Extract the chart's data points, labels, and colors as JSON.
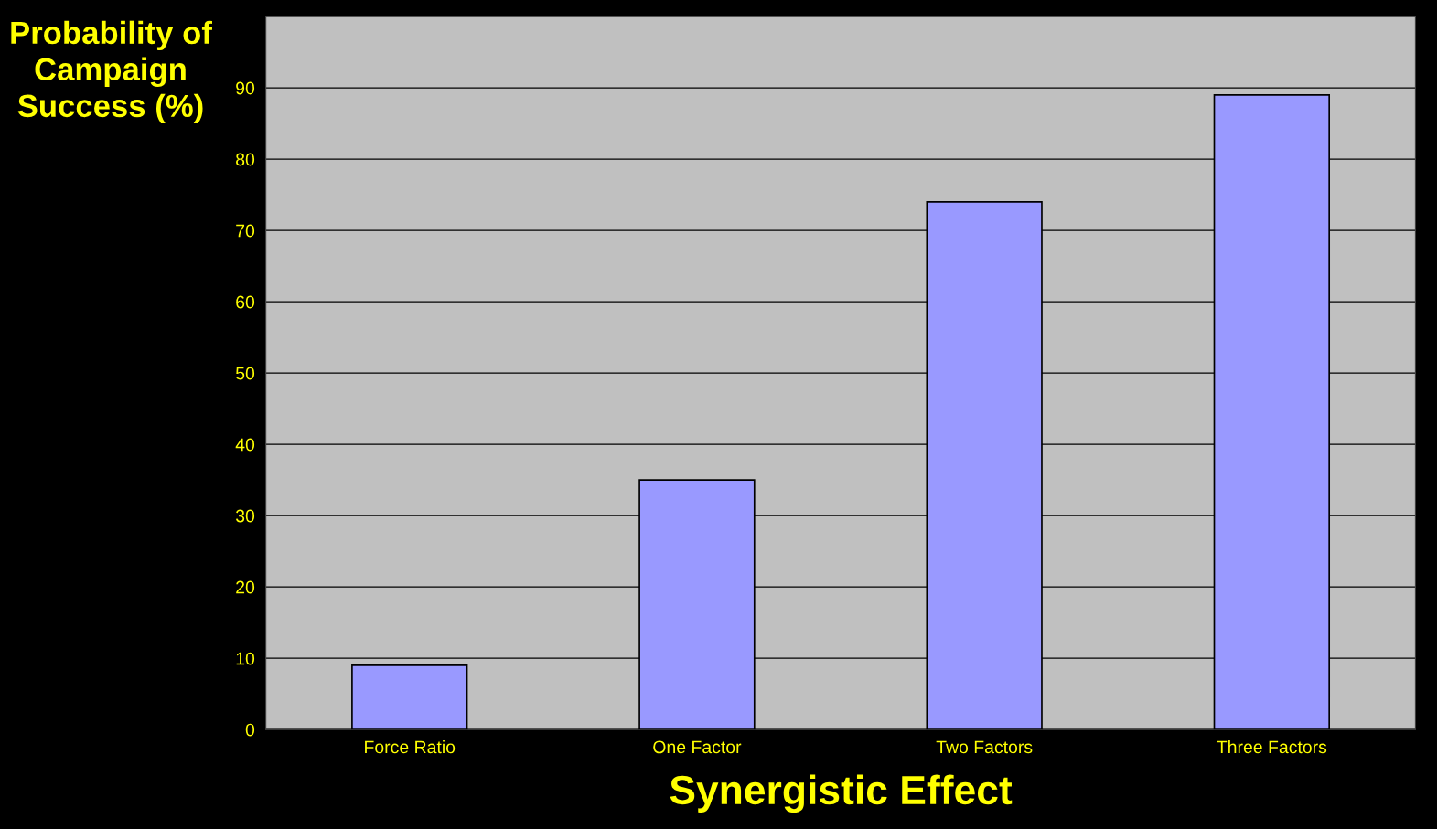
{
  "chart_data": {
    "type": "bar",
    "xlabel": "Synergistic Effect",
    "ylabel": "Probability of\nCampaign\nSuccess (%)",
    "categories": [
      "Force Ratio",
      "One Factor",
      "Two Factors",
      "Three Factors"
    ],
    "values": [
      9,
      35,
      74,
      89
    ],
    "color": "#9999ff",
    "ylim": [
      0,
      100
    ],
    "yticks": [
      0,
      10,
      20,
      30,
      40,
      50,
      60,
      70,
      80,
      90
    ],
    "grid": "y"
  }
}
